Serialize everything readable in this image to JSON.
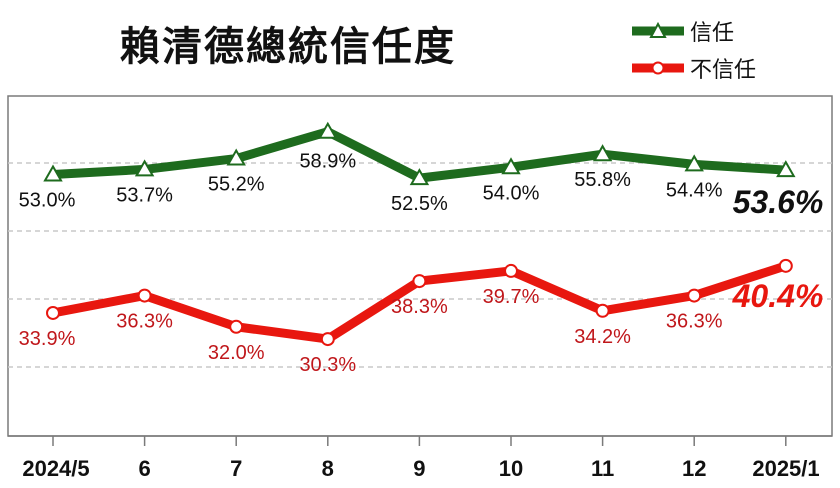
{
  "chart_data": {
    "type": "line",
    "title": "賴清德總統信任度",
    "categories": [
      "2024/5",
      "6",
      "7",
      "8",
      "9",
      "10",
      "11",
      "12",
      "2025/1"
    ],
    "series": [
      {
        "name": "信任",
        "color": "#1e6b1e",
        "marker": "triangle",
        "values": [
          53.0,
          53.7,
          55.2,
          58.9,
          52.5,
          54.0,
          55.8,
          54.4,
          53.6
        ],
        "labels": [
          "53.0%",
          "53.7%",
          "55.2%",
          "58.9%",
          "52.5%",
          "54.0%",
          "55.8%",
          "54.4%",
          "53.6%"
        ]
      },
      {
        "name": "不信任",
        "color": "#e8170f",
        "label_color": "#c0171b",
        "marker": "circle",
        "values": [
          33.9,
          36.3,
          32.0,
          30.3,
          38.3,
          39.7,
          34.2,
          36.3,
          40.4
        ],
        "labels": [
          "33.9%",
          "36.3%",
          "32.0%",
          "30.3%",
          "38.3%",
          "39.7%",
          "34.2%",
          "36.3%",
          "40.4%"
        ]
      }
    ],
    "grid": true,
    "legend": "top-right"
  }
}
